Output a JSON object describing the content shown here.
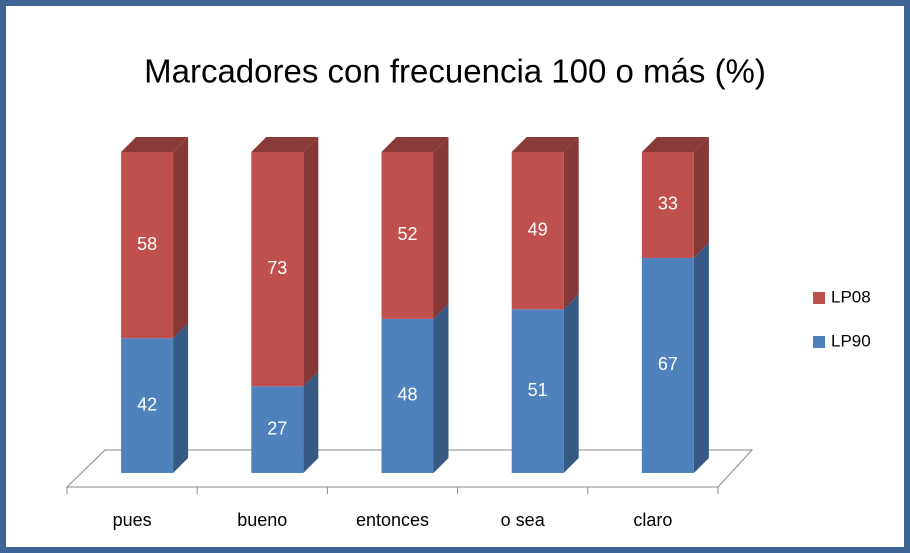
{
  "chart_data": {
    "type": "bar3d_stacked",
    "title": "Marcadores con frecuencia 100 o más (%)",
    "categories": [
      "pues",
      "bueno",
      "entonces",
      "o sea",
      "claro"
    ],
    "series": [
      {
        "name": "LP90",
        "color": "#4f81bd",
        "values": [
          42,
          27,
          48,
          51,
          67
        ]
      },
      {
        "name": "LP08",
        "color": "#c0504d",
        "values": [
          58,
          73,
          52,
          49,
          33
        ]
      }
    ],
    "legend": "right"
  }
}
